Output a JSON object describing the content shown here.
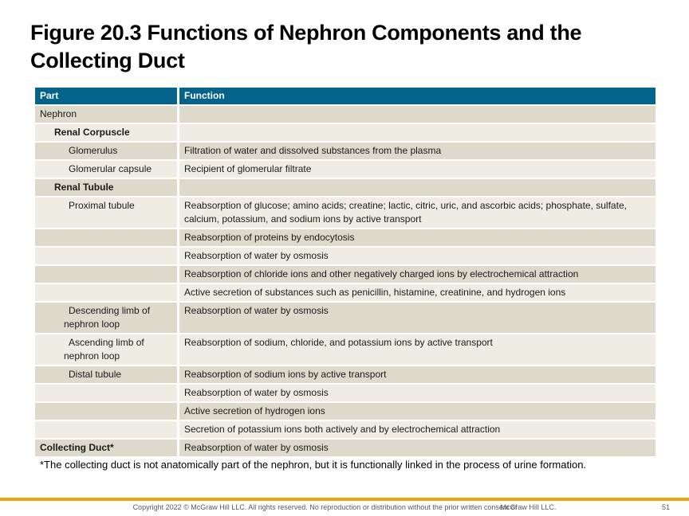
{
  "slide": {
    "title_line1": "Figure 20.3 Functions of Nephron Components and the",
    "title_line2": "Collecting Duct"
  },
  "table": {
    "headers": [
      "Part",
      "Function"
    ],
    "rows": [
      {
        "part": "Nephron",
        "function": "",
        "indent": 0,
        "bold": false
      },
      {
        "part": "Renal Corpuscle",
        "function": "",
        "indent": 1,
        "bold": true
      },
      {
        "part": "Glomerulus",
        "function": "Filtration of water and dissolved substances from the plasma",
        "indent": 2,
        "bold": false
      },
      {
        "part": "Glomerular capsule",
        "function": "Recipient of glomerular filtrate",
        "indent": 2,
        "bold": false
      },
      {
        "part": "Renal Tubule",
        "function": "",
        "indent": 1,
        "bold": true
      },
      {
        "part": "Proximal tubule",
        "function": "Reabsorption of glucose; amino acids; creatine; lactic, citric, uric, and ascorbic acids; phosphate, sulfate, calcium, potassium, and sodium ions by active transport",
        "indent": 2,
        "bold": false
      },
      {
        "part": "",
        "function": "Reabsorption of proteins by endocytosis",
        "indent": 2,
        "bold": false
      },
      {
        "part": "",
        "function": "Reabsorption of water by osmosis",
        "indent": 2,
        "bold": false
      },
      {
        "part": "",
        "function": "Reabsorption of chloride ions and other negatively charged ions by electrochemical attraction",
        "indent": 2,
        "bold": false
      },
      {
        "part": "",
        "function": "Active secretion of substances such as penicillin, histamine, creatinine, and hydrogen ions",
        "indent": 2,
        "bold": false
      },
      {
        "part": "Descending limb of nephron loop",
        "function": "Reabsorption of water by osmosis",
        "indent": 2,
        "bold": false
      },
      {
        "part": "Ascending limb of nephron loop",
        "function": "Reabsorption of sodium, chloride, and potassium ions by active transport",
        "indent": 2,
        "bold": false
      },
      {
        "part": "Distal tubule",
        "function": "Reabsorption of sodium ions by active transport",
        "indent": 2,
        "bold": false
      },
      {
        "part": "",
        "function": "Reabsorption of water by osmosis",
        "indent": 2,
        "bold": false
      },
      {
        "part": "",
        "function": "Active secretion of hydrogen ions",
        "indent": 2,
        "bold": false
      },
      {
        "part": "",
        "function": "Secretion of potassium ions both actively and by electrochemical attraction",
        "indent": 2,
        "bold": false
      },
      {
        "part": "Collecting Duct*",
        "function": "Reabsorption of water by osmosis",
        "indent": 0,
        "bold": true
      }
    ]
  },
  "footnote": "*The collecting duct is not anatomically part of the nephron, but it is functionally linked in the process of urine formation.",
  "footer": {
    "copyright_main": "Copyright 2022 © McGraw Hill LLC. All rights reserved. No reproduction or distribution without the prior written consent of",
    "copyright_overlap": "McGraw Hill LLC.",
    "page_number": "51"
  },
  "colors": {
    "header_bg": "#04638B",
    "row_dark": "#DDDACB",
    "row_light": "#EFEDE3",
    "accent_gold": "#F0A30F",
    "footer_gray": "#595959",
    "body_text": "#1A1A1A"
  }
}
